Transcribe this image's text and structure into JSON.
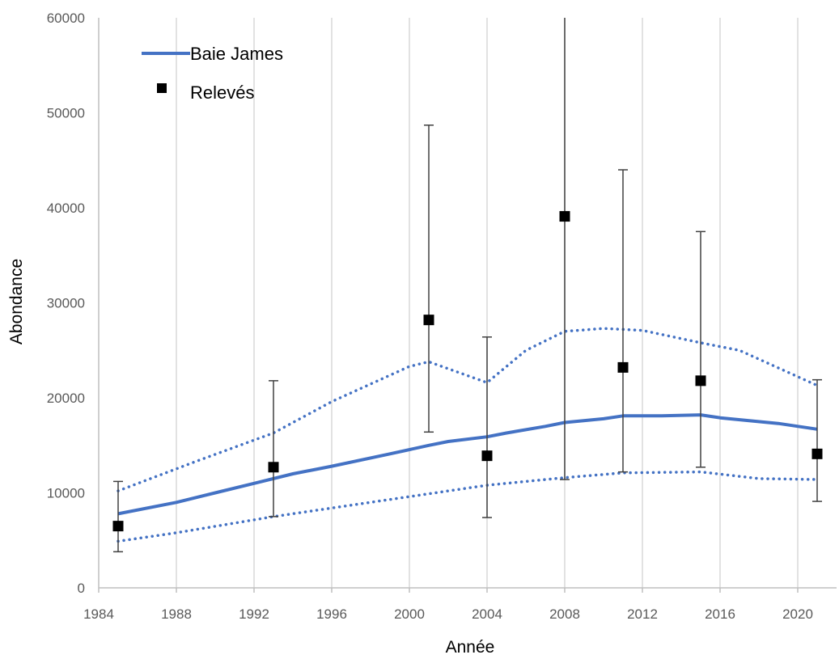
{
  "chart_data": {
    "type": "line",
    "xlabel": "Année",
    "ylabel": "Abondance",
    "xlim": [
      1984,
      2022
    ],
    "ylim": [
      0,
      60000
    ],
    "x_ticks": [
      "1984",
      "1988",
      "1992",
      "1996",
      "2000",
      "2004",
      "2008",
      "2012",
      "2016",
      "2020"
    ],
    "y_ticks": [
      "0",
      "10000",
      "20000",
      "30000",
      "40000",
      "50000",
      "60000"
    ],
    "grid": "vertical",
    "legend": {
      "position": "top-left",
      "entries": [
        "Baie James",
        "Relevés"
      ]
    },
    "series": [
      {
        "name": "Baie James",
        "style": "solid-line",
        "color": "#4472C4",
        "x": [
          1985,
          1988,
          1990,
          1992,
          1994,
          1996,
          1999,
          2001,
          2002,
          2004,
          2005,
          2007,
          2008,
          2010,
          2011,
          2013,
          2015,
          2016,
          2019,
          2021
        ],
        "y": [
          7800,
          9000,
          10000,
          11000,
          12000,
          12800,
          14100,
          15000,
          15400,
          15900,
          16300,
          17000,
          17400,
          17800,
          18100,
          18100,
          18200,
          17900,
          17300,
          16700
        ]
      },
      {
        "name": "",
        "style": "dotted-line",
        "color": "#4472C4",
        "x": [
          1985,
          1989,
          1993,
          1996,
          2000,
          2001,
          2004,
          2006,
          2008,
          2010,
          2012,
          2015,
          2017,
          2021
        ],
        "y": [
          10200,
          13300,
          16300,
          19600,
          23300,
          23800,
          21600,
          25000,
          27000,
          27300,
          27100,
          25800,
          25000,
          21300
        ]
      },
      {
        "name": "",
        "style": "dotted-line",
        "color": "#4472C4",
        "x": [
          1985,
          1988,
          1993,
          1996,
          2000,
          2004,
          2008,
          2011,
          2015,
          2018,
          2021
        ],
        "y": [
          4900,
          5800,
          7500,
          8400,
          9600,
          10800,
          11600,
          12100,
          12200,
          11500,
          11400
        ]
      },
      {
        "name": "Relevés",
        "style": "markers-with-error-bars",
        "color": "#000000",
        "x": [
          1985,
          1993,
          2001,
          2004,
          2008,
          2011,
          2015,
          2021
        ],
        "y": [
          6500,
          12700,
          28200,
          13900,
          39100,
          23200,
          21800,
          14100
        ],
        "y_low": [
          3800,
          7500,
          16400,
          7400,
          11400,
          12200,
          12700,
          9100
        ],
        "y_high": [
          11200,
          21800,
          48700,
          26400,
          60000,
          44000,
          37500,
          21900
        ]
      }
    ]
  }
}
